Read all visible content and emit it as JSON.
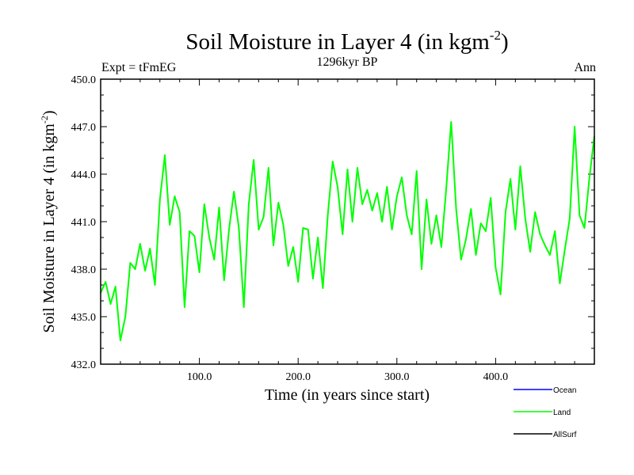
{
  "chart_data": {
    "type": "line",
    "title": "Soil Moisture in Layer 4 (in kgm",
    "title_sup": "-2",
    "title_close": ")",
    "subtitle": "1296kyr BP",
    "left_label": "Expt = tFmEG",
    "right_label": "Ann",
    "xlabel": "Time (in years since start)",
    "ylabel": "Soil Moisture in Layer 4 (in kgm",
    "ylabel_sup": "-2",
    "ylabel_close": ")",
    "xlim": [
      0,
      500
    ],
    "ylim": [
      432,
      450
    ],
    "xticks": [
      100,
      200,
      300,
      400
    ],
    "xtick_labels": [
      "100.0",
      "200.0",
      "300.0",
      "400.0"
    ],
    "yticks": [
      432,
      435,
      438,
      441,
      444,
      447,
      450
    ],
    "ytick_labels": [
      "432.0",
      "435.0",
      "438.0",
      "441.0",
      "444.0",
      "447.0",
      "450.0"
    ],
    "legend": [
      {
        "name": "Ocean",
        "color": "#0000ff"
      },
      {
        "name": "Land",
        "color": "#00ff00"
      },
      {
        "name": "AllSurf",
        "color": "#000000"
      }
    ],
    "series": [
      {
        "name": "Land",
        "color": "#00ff00",
        "x": [
          0,
          5,
          10,
          15,
          20,
          25,
          30,
          35,
          40,
          45,
          50,
          55,
          60,
          65,
          70,
          75,
          80,
          85,
          90,
          95,
          100,
          105,
          110,
          115,
          120,
          125,
          130,
          135,
          140,
          145,
          150,
          155,
          160,
          165,
          170,
          175,
          180,
          185,
          190,
          195,
          200,
          205,
          210,
          215,
          220,
          225,
          230,
          235,
          240,
          245,
          250,
          255,
          260,
          265,
          270,
          275,
          280,
          285,
          290,
          295,
          300,
          305,
          310,
          315,
          320,
          325,
          330,
          335,
          340,
          345,
          350,
          355,
          360,
          365,
          370,
          375,
          380,
          385,
          390,
          395,
          400,
          405,
          410,
          415,
          420,
          425,
          430,
          435,
          440,
          445,
          450,
          455,
          460,
          465,
          470,
          475,
          480,
          485,
          490,
          495,
          500
        ],
        "values": [
          436.5,
          437.2,
          435.8,
          436.9,
          433.5,
          435.0,
          438.4,
          438.0,
          439.6,
          437.9,
          439.3,
          437.0,
          442.4,
          445.2,
          440.8,
          442.6,
          441.6,
          435.6,
          440.4,
          440.1,
          437.8,
          442.1,
          440.0,
          438.6,
          441.9,
          437.3,
          440.5,
          442.9,
          440.6,
          435.6,
          442.1,
          444.9,
          440.5,
          441.3,
          444.4,
          439.5,
          442.2,
          440.8,
          438.2,
          439.4,
          437.2,
          440.6,
          440.5,
          437.4,
          440.0,
          436.8,
          441.4,
          444.8,
          443.2,
          440.2,
          444.3,
          441.0,
          444.4,
          442.1,
          443.0,
          441.7,
          442.8,
          441.0,
          443.2,
          440.5,
          442.6,
          443.8,
          441.4,
          440.2,
          444.2,
          438.0,
          442.4,
          439.6,
          441.4,
          439.4,
          443.1,
          447.3,
          441.8,
          438.6,
          439.9,
          441.8,
          438.9,
          440.9,
          440.4,
          442.5,
          438.1,
          436.4,
          441.6,
          443.7,
          440.5,
          444.5,
          441.2,
          439.1,
          441.6,
          440.2,
          439.5,
          438.9,
          440.4,
          437.1,
          439.2,
          441.2,
          447.0,
          441.4,
          440.6,
          443.8,
          446.4
        ]
      }
    ]
  }
}
